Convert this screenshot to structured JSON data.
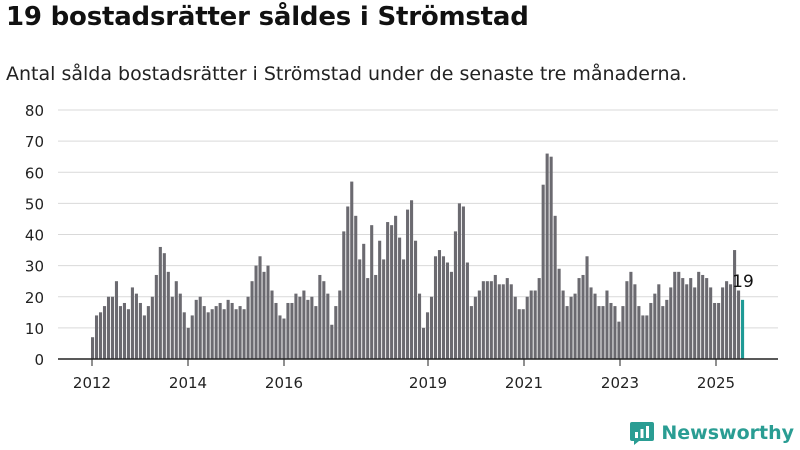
{
  "header": {
    "title": "19 bostadsrätter såldes i Strömstad",
    "subtitle": "Antal sålda bostadsrätter i Strömstad under de senaste tre månaderna."
  },
  "brand": {
    "name": "Newsworthy",
    "icon": "newsworthy-logo-icon",
    "color": "#2a9d93"
  },
  "colors": {
    "bar": "#6b6a70",
    "highlight": "#1f9a95",
    "grid": "#d9d9d9",
    "axis": "#222222"
  },
  "chart_data": {
    "type": "bar",
    "title": "19 bostadsrätter såldes i Strömstad",
    "subtitle": "Antal sålda bostadsrätter i Strömstad under de senaste tre månaderna.",
    "ylim": [
      0,
      80
    ],
    "yticks": [
      0,
      10,
      20,
      30,
      40,
      50,
      60,
      70,
      80
    ],
    "xticks": [
      "2012",
      "2014",
      "2016",
      "2019",
      "2021",
      "2023",
      "2025"
    ],
    "grid": true,
    "highlight_label": "19",
    "values": [
      7,
      14,
      15,
      17,
      20,
      20,
      25,
      17,
      18,
      16,
      23,
      21,
      18,
      14,
      17,
      20,
      27,
      36,
      34,
      28,
      20,
      25,
      21,
      15,
      10,
      14,
      19,
      20,
      17,
      15,
      16,
      17,
      18,
      16,
      19,
      18,
      16,
      17,
      16,
      20,
      25,
      30,
      33,
      28,
      30,
      22,
      18,
      14,
      13,
      18,
      18,
      21,
      20,
      22,
      19,
      20,
      17,
      27,
      25,
      21,
      11,
      17,
      22,
      41,
      49,
      57,
      46,
      32,
      37,
      26,
      43,
      27,
      38,
      32,
      44,
      43,
      46,
      39,
      32,
      48,
      51,
      38,
      21,
      10,
      15,
      20,
      33,
      35,
      33,
      31,
      28,
      41,
      50,
      49,
      31,
      17,
      20,
      22,
      25,
      25,
      25,
      27,
      24,
      24,
      26,
      24,
      20,
      16,
      16,
      20,
      22,
      22,
      26,
      56,
      66,
      65,
      46,
      29,
      22,
      17,
      20,
      21,
      26,
      27,
      33,
      23,
      21,
      17,
      17,
      22,
      18,
      17,
      12,
      17,
      25,
      28,
      24,
      17,
      14,
      14,
      18,
      21,
      24,
      17,
      19,
      23,
      28,
      28,
      26,
      24,
      26,
      23,
      28,
      27,
      26,
      23,
      18,
      18,
      23,
      25,
      24,
      35,
      22,
      19
    ],
    "highlight_last": true
  }
}
